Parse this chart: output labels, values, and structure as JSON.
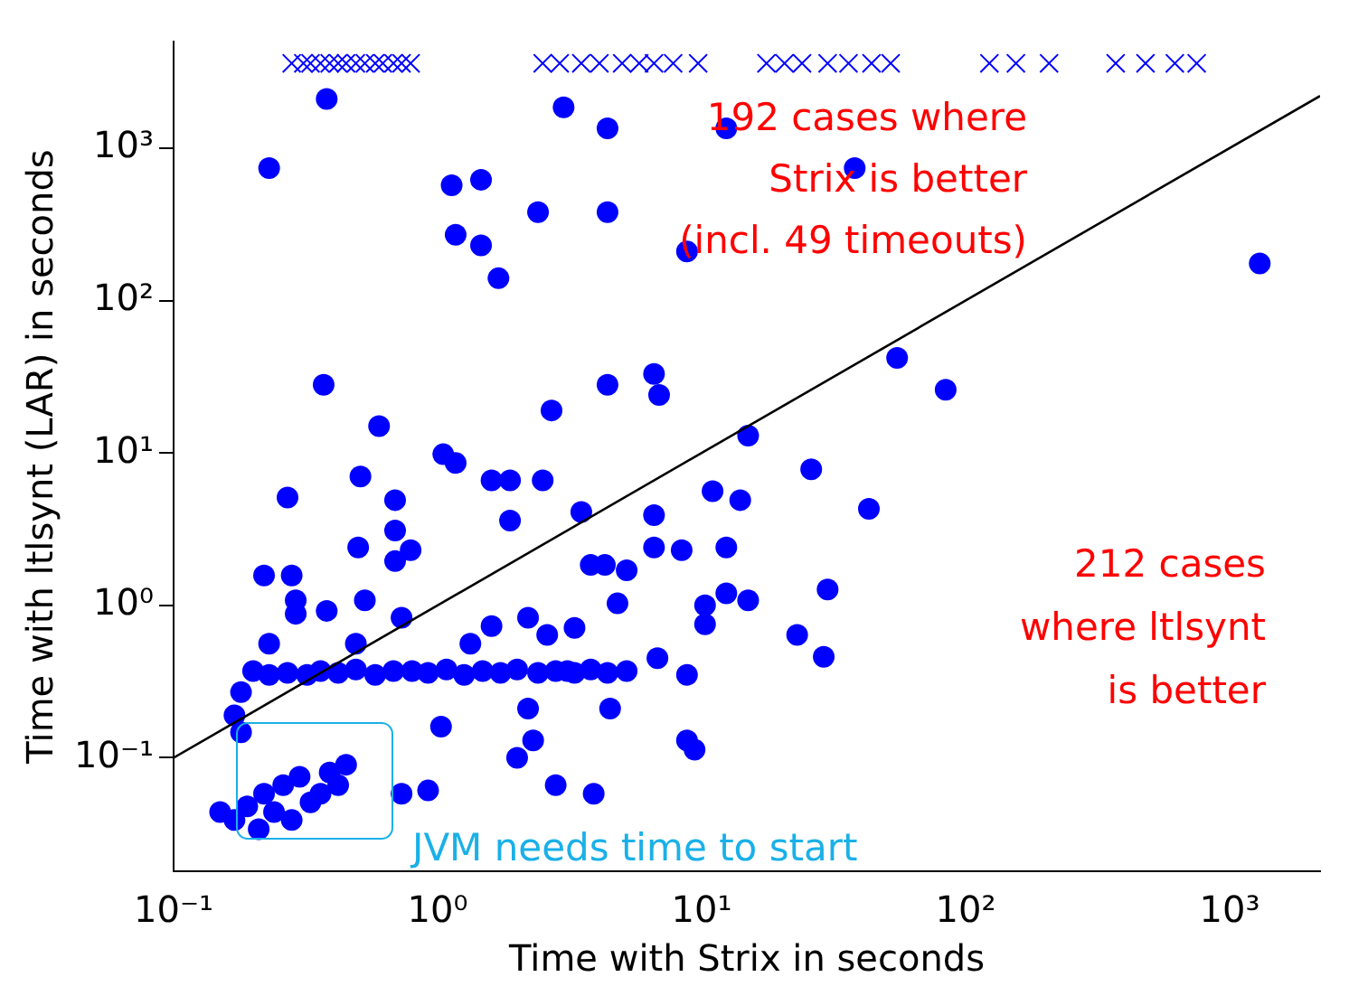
{
  "chart_data": {
    "type": "scatter",
    "xlabel": "Time with Strix in seconds",
    "ylabel": "Time with ltlsynt (LAR) in seconds",
    "log": "xy",
    "grid": false,
    "legend": false,
    "xlim": [
      0.1,
      2200
    ],
    "ylim": [
      0.018,
      5000
    ],
    "xticks": [
      {
        "value": 0.1,
        "label": "10⁻¹"
      },
      {
        "value": 1,
        "label": "10⁰"
      },
      {
        "value": 10,
        "label": "10¹"
      },
      {
        "value": 100,
        "label": "10²"
      },
      {
        "value": 1000,
        "label": "10³"
      }
    ],
    "yticks": [
      {
        "value": 0.1,
        "label": "10⁻¹"
      },
      {
        "value": 1,
        "label": "10⁰"
      },
      {
        "value": 10,
        "label": "10¹"
      },
      {
        "value": 100,
        "label": "10²"
      },
      {
        "value": 1000,
        "label": "10³"
      }
    ],
    "annotations": [
      "192 cases where\nStrix is better\n(incl. 49 timeouts)",
      "212 cases\nwhere ltlsynt\nis better",
      "JVM needs time to start"
    ],
    "series": [
      {
        "type": "line",
        "color": "#000000",
        "marker": "none",
        "line_style": "solid",
        "x": [
          0.1,
          2200
        ],
        "values": [
          0.1,
          2200
        ]
      },
      {
        "color": "#0000ff",
        "marker": "circle",
        "x": [
          0.38,
          3.0,
          4.4,
          12.4,
          38,
          0.23,
          1.13,
          1.46,
          4.4,
          2.4,
          1.17,
          1.46,
          1.7,
          8.8,
          1300,
          0.37,
          4.4,
          6.6,
          6.9,
          2.7,
          0.6,
          55,
          84,
          15,
          26,
          43,
          14,
          1.05,
          1.17,
          0.51,
          0.69,
          0.69,
          1.6,
          1.88,
          2.5,
          0.27,
          1.88,
          3.5,
          6.6,
          6.6,
          8.4,
          11,
          12.4,
          0.5,
          0.69,
          0.79,
          0.22,
          0.28,
          0.29,
          0.29,
          0.23,
          0.38,
          0.53,
          0.73,
          0.49,
          3.8,
          4.3,
          5.2,
          10.3,
          12.4,
          15,
          30,
          29,
          23,
          10.3,
          6.8,
          8.8,
          4.8,
          3.3,
          3.1,
          1.6,
          2.6,
          2.2,
          1.33,
          0.18,
          0.2,
          0.23,
          0.27,
          0.32,
          0.36,
          0.42,
          0.49,
          0.58,
          0.68,
          0.8,
          0.92,
          1.08,
          1.26,
          1.48,
          1.73,
          2.0,
          2.4,
          2.8,
          3.3,
          3.8,
          4.4,
          5.2,
          0.17,
          0.18,
          2.2,
          1.03,
          2.3,
          2.0,
          0.73,
          0.92,
          2.8,
          3.9,
          8.8,
          9.4,
          4.5,
          0.15,
          0.17,
          0.19,
          0.21,
          0.22,
          0.24,
          0.26,
          0.28,
          0.3,
          0.33,
          0.36,
          0.39,
          0.42,
          0.45
        ],
        "values": [
          2100,
          1850,
          1350,
          1350,
          740,
          740,
          570,
          620,
          380,
          380,
          270,
          230,
          140,
          210,
          175,
          28,
          28,
          33,
          24,
          19,
          15,
          42,
          26,
          13,
          7.8,
          4.3,
          4.9,
          9.8,
          8.6,
          7,
          4.9,
          3.1,
          6.6,
          6.6,
          6.6,
          5.1,
          3.6,
          4.1,
          3.9,
          2.4,
          2.3,
          5.6,
          2.4,
          2.4,
          1.95,
          2.3,
          1.57,
          1.57,
          1.08,
          0.88,
          0.56,
          0.92,
          1.08,
          0.83,
          0.56,
          1.84,
          1.84,
          1.7,
          1.0,
          1.2,
          1.08,
          1.27,
          0.46,
          0.64,
          0.75,
          0.45,
          0.35,
          1.03,
          0.71,
          0.37,
          0.73,
          0.64,
          0.83,
          0.56,
          0.27,
          0.37,
          0.35,
          0.36,
          0.35,
          0.37,
          0.36,
          0.38,
          0.35,
          0.37,
          0.37,
          0.36,
          0.38,
          0.35,
          0.37,
          0.36,
          0.38,
          0.36,
          0.37,
          0.36,
          0.38,
          0.36,
          0.37,
          0.19,
          0.147,
          0.21,
          0.16,
          0.13,
          0.1,
          0.058,
          0.061,
          0.066,
          0.058,
          0.13,
          0.113,
          0.21,
          0.044,
          0.039,
          0.048,
          0.034,
          0.058,
          0.044,
          0.066,
          0.039,
          0.075,
          0.051,
          0.058,
          0.08,
          0.066,
          0.09
        ]
      },
      {
        "color": "#0000ff",
        "marker": "cross",
        "x": [
          0.28,
          0.31,
          0.33,
          0.36,
          0.39,
          0.42,
          0.45,
          0.49,
          0.53,
          0.58,
          0.62,
          0.68,
          0.73,
          0.79,
          2.5,
          2.9,
          3.5,
          4.1,
          5,
          5.8,
          6.6,
          7.8,
          9.7,
          17.6,
          20.6,
          24,
          30,
          36,
          44,
          52,
          123,
          155,
          207,
          370,
          480,
          620,
          750
        ],
        "values": [
          3600,
          3600,
          3600,
          3600,
          3600,
          3600,
          3600,
          3600,
          3600,
          3600,
          3600,
          3600,
          3600,
          3600,
          3600,
          3600,
          3600,
          3600,
          3600,
          3600,
          3600,
          3600,
          3600,
          3600,
          3600,
          3600,
          3600,
          3600,
          3600,
          3600,
          3600,
          3600,
          3600,
          3600,
          3600,
          3600,
          3600
        ]
      }
    ]
  }
}
